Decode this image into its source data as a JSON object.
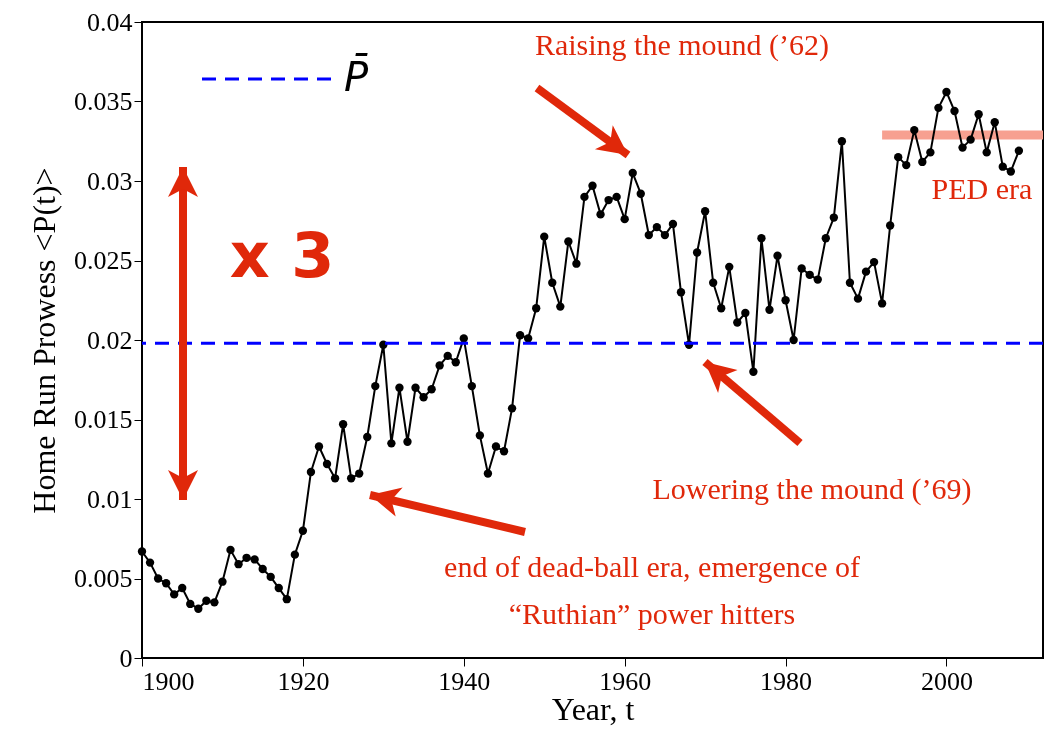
{
  "chart_data": {
    "type": "line",
    "xlabel": "Year, t",
    "ylabel": "Home Run Prowess  <P(t)>",
    "x": [
      1900,
      1901,
      1902,
      1903,
      1904,
      1905,
      1906,
      1907,
      1908,
      1909,
      1910,
      1911,
      1912,
      1913,
      1914,
      1915,
      1916,
      1917,
      1918,
      1919,
      1920,
      1921,
      1922,
      1923,
      1924,
      1925,
      1926,
      1927,
      1928,
      1929,
      1930,
      1931,
      1932,
      1933,
      1934,
      1935,
      1936,
      1937,
      1938,
      1939,
      1940,
      1941,
      1942,
      1943,
      1944,
      1945,
      1946,
      1947,
      1948,
      1949,
      1950,
      1951,
      1952,
      1953,
      1954,
      1955,
      1956,
      1957,
      1958,
      1959,
      1960,
      1961,
      1962,
      1963,
      1964,
      1965,
      1966,
      1967,
      1968,
      1969,
      1970,
      1971,
      1972,
      1973,
      1974,
      1975,
      1976,
      1977,
      1978,
      1979,
      1980,
      1981,
      1982,
      1983,
      1984,
      1985,
      1986,
      1987,
      1988,
      1989,
      1990,
      1991,
      1992,
      1993,
      1994,
      1995,
      1996,
      1997,
      1998,
      1999,
      2000,
      2001,
      2002,
      2003,
      2004,
      2005,
      2006,
      2007,
      2008,
      2009
    ],
    "series": [
      {
        "color": "#000000",
        "values": [
          0.0067,
          0.006,
          0.005,
          0.0047,
          0.004,
          0.0044,
          0.0034,
          0.0031,
          0.0036,
          0.0035,
          0.0048,
          0.0068,
          0.0059,
          0.0063,
          0.0062,
          0.0056,
          0.0051,
          0.0044,
          0.0037,
          0.0065,
          0.008,
          0.0117,
          0.0133,
          0.0122,
          0.0113,
          0.0147,
          0.0113,
          0.0116,
          0.0139,
          0.0171,
          0.0197,
          0.0135,
          0.017,
          0.0136,
          0.017,
          0.0164,
          0.0169,
          0.0184,
          0.019,
          0.0186,
          0.0201,
          0.0171,
          0.014,
          0.0116,
          0.0133,
          0.013,
          0.0157,
          0.0203,
          0.0201,
          0.022,
          0.0265,
          0.0236,
          0.0221,
          0.0262,
          0.0248,
          0.029,
          0.0297,
          0.0279,
          0.0288,
          0.029,
          0.0276,
          0.0305,
          0.0292,
          0.0266,
          0.0271,
          0.0266,
          0.0273,
          0.023,
          0.0197,
          0.0255,
          0.0281,
          0.0236,
          0.022,
          0.0246,
          0.0211,
          0.0217,
          0.018,
          0.0264,
          0.0219,
          0.0253,
          0.0225,
          0.02,
          0.0245,
          0.0241,
          0.0238,
          0.0264,
          0.0277,
          0.0325,
          0.0236,
          0.0226,
          0.0243,
          0.0249,
          0.0223,
          0.0272,
          0.0315,
          0.031,
          0.0332,
          0.0312,
          0.0318,
          0.0346,
          0.0356,
          0.0344,
          0.0321,
          0.0326,
          0.0342,
          0.0318,
          0.0337,
          0.0309,
          0.0306,
          0.0319
        ]
      },
      {
        "type": "line",
        "color": "#f7a090",
        "marker": "none",
        "x": [
          1992,
          2012
        ],
        "values": [
          0.0329,
          0.0329
        ]
      }
    ],
    "marker": "circle",
    "xlim": [
      1900,
      2012
    ],
    "xticks": [
      1900,
      1920,
      1940,
      1960,
      1980,
      2000
    ],
    "ylim": [
      0,
      0.04
    ],
    "yticks": [
      0,
      0.005,
      0.01,
      0.015,
      0.02,
      0.025,
      0.03,
      0.035,
      0.04
    ],
    "ref_lines": [
      {
        "axis": "y",
        "value": 0.0198,
        "label": "P̄",
        "color": "#0000ff",
        "line_style": "dashed"
      }
    ],
    "annotations": [
      "Raising the mound (’62)",
      "Lowering the mound (’69)",
      "end of dead-ball era, emergence of\n“Ruthian” power hitters",
      "PED era",
      "x 3"
    ]
  }
}
